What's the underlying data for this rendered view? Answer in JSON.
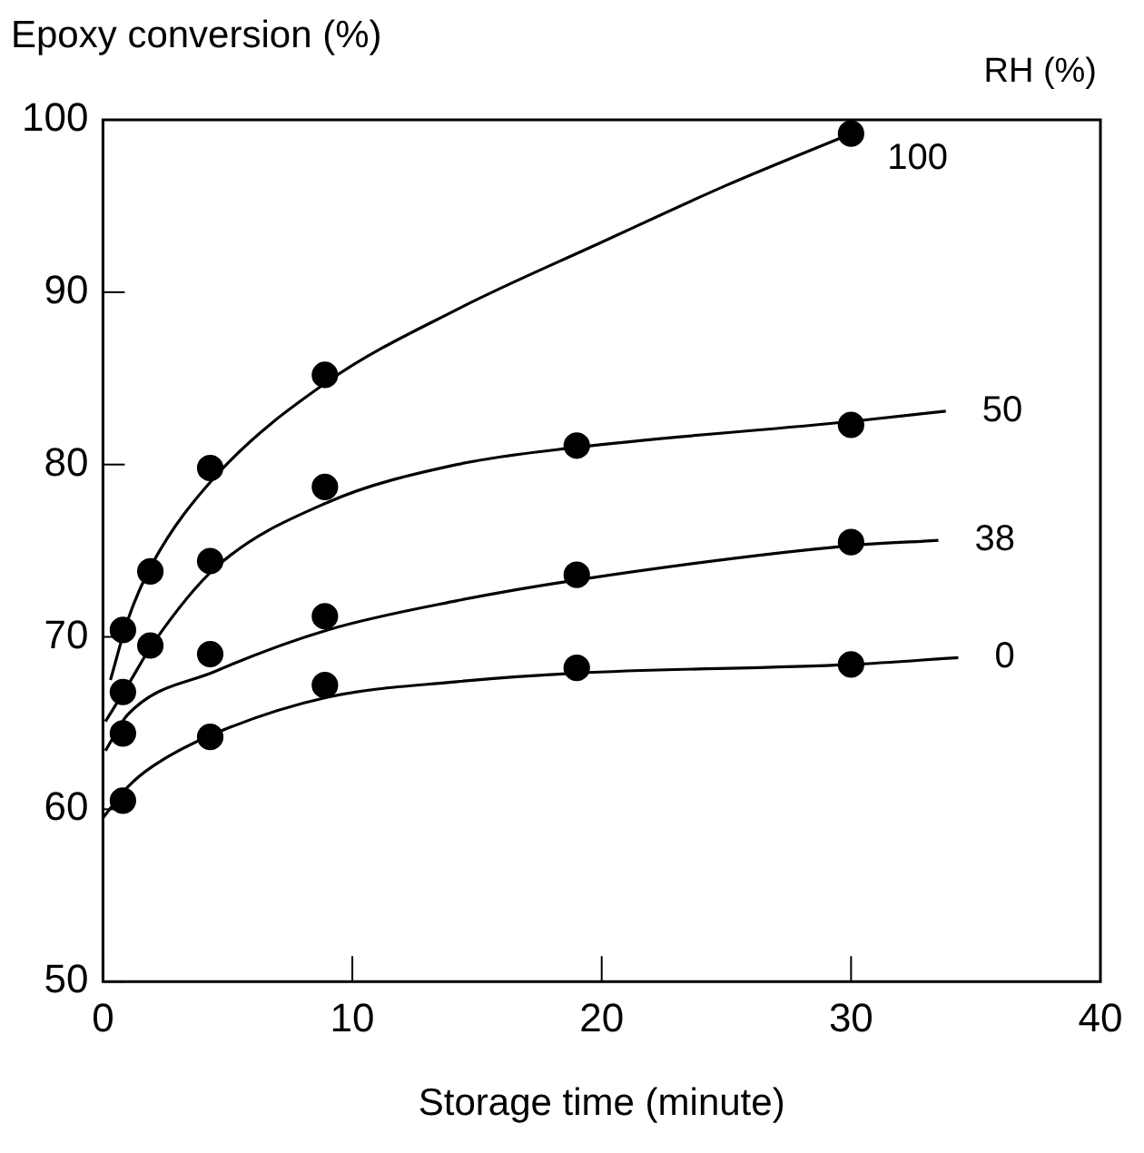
{
  "chart_data": {
    "type": "scatter",
    "xlabel": "Storage time (minute)",
    "ylabel": "Epoxy conversion (%)",
    "legend_title": "RH (%)",
    "xlim": [
      0,
      40
    ],
    "xticks": [
      0,
      10,
      20,
      30,
      40
    ],
    "ylim": [
      50,
      100
    ],
    "yticks": [
      50,
      60,
      70,
      80,
      90,
      100
    ],
    "grid": false,
    "legend": false,
    "marker": "circle",
    "series": [
      {
        "type": "scatter",
        "color": "#000000",
        "x": [
          0.8,
          1.9,
          4.3,
          8.9,
          30
        ],
        "values": [
          70.4,
          73.8,
          79.8,
          85.2,
          99.2
        ]
      },
      {
        "type": "scatter",
        "color": "#000000",
        "x": [
          0.8,
          1.9,
          4.3,
          8.9,
          19,
          30
        ],
        "values": [
          66.8,
          69.5,
          74.4,
          78.7,
          81.1,
          82.3
        ]
      },
      {
        "type": "scatter",
        "color": "#000000",
        "x": [
          0.8,
          4.3,
          8.9,
          19,
          30
        ],
        "values": [
          64.4,
          69.0,
          71.2,
          73.6,
          75.5
        ]
      },
      {
        "type": "scatter",
        "color": "#000000",
        "x": [
          0.8,
          4.3,
          8.9,
          19,
          30
        ],
        "values": [
          60.5,
          64.2,
          67.2,
          68.2,
          68.4
        ]
      },
      {
        "type": "line",
        "name": "100",
        "color": "#000000",
        "marker": "none",
        "x": [
          0.3,
          1,
          2,
          4.5,
          9,
          14.2,
          20,
          25,
          30
        ],
        "values": [
          67.5,
          71,
          74.3,
          79.3,
          84.8,
          89.0,
          92.9,
          96.2,
          99.2
        ]
      },
      {
        "type": "line",
        "name": "50",
        "color": "#000000",
        "marker": "none",
        "x": [
          0.1,
          1,
          2,
          4.5,
          9,
          14.2,
          19,
          30,
          33.8
        ],
        "values": [
          65.1,
          67.2,
          69.6,
          74,
          77.8,
          80,
          81,
          82.5,
          83.1
        ]
      },
      {
        "type": "line",
        "name": "38",
        "color": "#000000",
        "marker": "none",
        "x": [
          0.1,
          1,
          4.5,
          9,
          14.2,
          19,
          30,
          33.5
        ],
        "values": [
          63.4,
          65.5,
          68,
          70.4,
          72.1,
          73.3,
          75.3,
          75.6
        ]
      },
      {
        "type": "line",
        "name": "0",
        "color": "#000000",
        "marker": "none",
        "x": [
          0,
          1,
          2,
          4.5,
          9,
          14.2,
          19,
          30,
          34.3
        ],
        "values": [
          59.5,
          61.3,
          62.5,
          64.4,
          66.5,
          67.4,
          67.9,
          68.4,
          68.8
        ]
      }
    ]
  }
}
